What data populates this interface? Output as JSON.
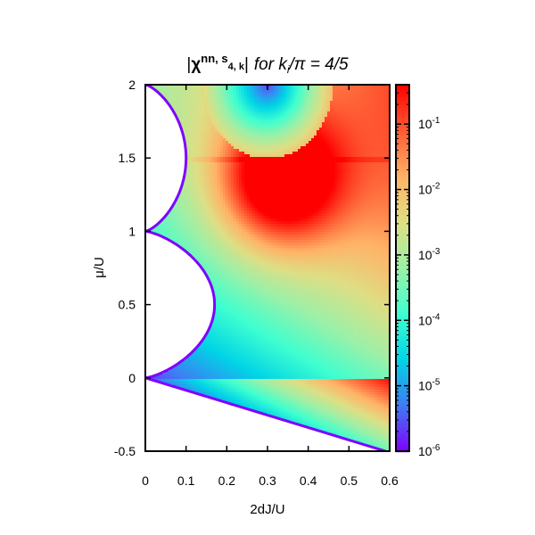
{
  "chart_data": {
    "type": "heatmap",
    "title": {
      "abs_bar_left": "|",
      "chi": "χ",
      "sup_main": "nn, s",
      "sup_sub": "4, k",
      "abs_bar_right": "|",
      "suffix_for": "for k",
      "suffix_sub": "i",
      "suffix_tail": "/π = 4/5"
    },
    "xlabel": "2dJ/U",
    "ylabel": "μ/U",
    "xlim": [
      0,
      0.6
    ],
    "ylim": [
      -0.5,
      2
    ],
    "x_ticks": [
      {
        "value": 0,
        "label": "0"
      },
      {
        "value": 0.1,
        "label": "0.1"
      },
      {
        "value": 0.2,
        "label": "0.2"
      },
      {
        "value": 0.3,
        "label": "0.3"
      },
      {
        "value": 0.4,
        "label": "0.4"
      },
      {
        "value": 0.5,
        "label": "0.5"
      },
      {
        "value": 0.6,
        "label": "0.6"
      }
    ],
    "y_ticks": [
      {
        "value": -0.5,
        "label": "-0.5"
      },
      {
        "value": 0,
        "label": "0"
      },
      {
        "value": 0.5,
        "label": "0.5"
      },
      {
        "value": 1,
        "label": "1"
      },
      {
        "value": 1.5,
        "label": "1.5"
      },
      {
        "value": 2,
        "label": "2"
      }
    ],
    "colorbar": {
      "scale": "log",
      "range": [
        1e-06,
        0.4
      ],
      "tick_labels": [
        {
          "value": 1e-06,
          "base": "10",
          "exp": "-6"
        },
        {
          "value": 1e-05,
          "base": "10",
          "exp": "-5"
        },
        {
          "value": 0.0001,
          "base": "10",
          "exp": "-4"
        },
        {
          "value": 0.001,
          "base": "10",
          "exp": "-3"
        },
        {
          "value": 0.01,
          "base": "10",
          "exp": "-2"
        },
        {
          "value": 0.1,
          "base": "10",
          "exp": "-1"
        }
      ],
      "colors": [
        "#7f00ff",
        "#3f7cf3",
        "#00d4e6",
        "#3fffcf",
        "#9cf0a7",
        "#dede84",
        "#ffb266",
        "#ff5b33",
        "#ff0000"
      ]
    },
    "mott_lobe_boundaries": {
      "lobe_0_to_1": {
        "mu_range": [
          0,
          1
        ],
        "peak_mu": 0.5,
        "peak_x": 0.17
      },
      "lobe_1_to_2": {
        "mu_range": [
          1,
          2
        ],
        "peak_mu": 1.5,
        "peak_x": 0.1
      }
    },
    "lower_cutoff_edge": [
      [
        0,
        0
      ],
      [
        0.59,
        -0.5
      ]
    ],
    "grid": false,
    "legend": "none"
  }
}
